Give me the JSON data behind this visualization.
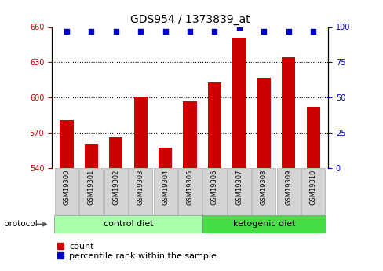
{
  "title": "GDS954 / 1373839_at",
  "samples": [
    "GSM19300",
    "GSM19301",
    "GSM19302",
    "GSM19303",
    "GSM19304",
    "GSM19305",
    "GSM19306",
    "GSM19307",
    "GSM19308",
    "GSM19309",
    "GSM19310"
  ],
  "counts": [
    581,
    561,
    566,
    601,
    557,
    597,
    613,
    651,
    617,
    634,
    592
  ],
  "percentile_ranks": [
    97,
    97,
    97,
    97,
    97,
    97,
    97,
    100,
    97,
    97,
    97
  ],
  "ylim_left": [
    540,
    660
  ],
  "ylim_right": [
    0,
    100
  ],
  "yticks_left": [
    540,
    570,
    600,
    630,
    660
  ],
  "yticks_right": [
    0,
    25,
    50,
    75,
    100
  ],
  "groups": [
    {
      "label": "control diet",
      "indices": [
        0,
        1,
        2,
        3,
        4,
        5
      ],
      "color": "#aaffaa"
    },
    {
      "label": "ketogenic diet",
      "indices": [
        6,
        7,
        8,
        9,
        10
      ],
      "color": "#44dd44"
    }
  ],
  "bar_color": "#cc0000",
  "dot_color": "#0000cc",
  "protocol_label": "protocol",
  "legend_count_label": "count",
  "legend_percentile_label": "percentile rank within the sample",
  "tick_label_color_left": "#cc0000",
  "tick_label_color_right": "#0000cc",
  "bg_color": "#ffffff",
  "plot_bg_color": "#ffffff",
  "bar_width": 0.55,
  "dot_size": 20,
  "dot_marker": "s",
  "grid_linestyle": ":",
  "grid_linewidth": 0.8,
  "title_fontsize": 10,
  "tick_labelsize": 7,
  "sample_fontsize": 6,
  "group_fontsize": 8,
  "legend_fontsize": 8
}
